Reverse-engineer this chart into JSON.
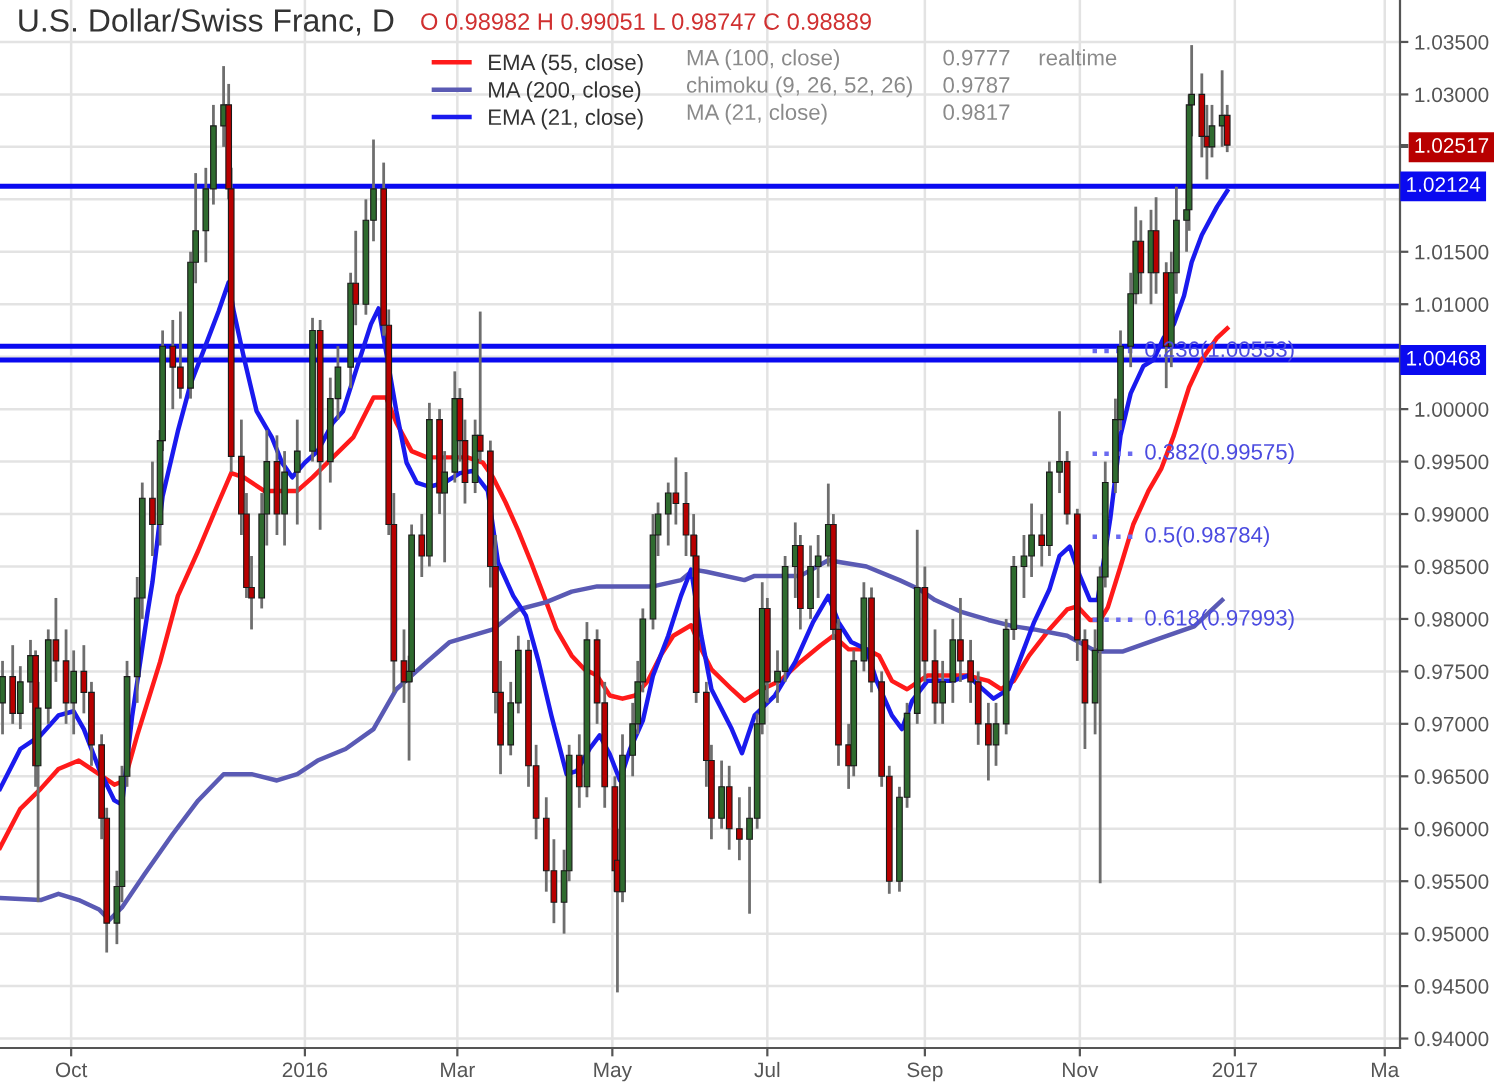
{
  "chart_data": {
    "type": "candlestick",
    "title": "U.S. Dollar/Swiss Franc, D",
    "subtitle": "O 0.98982 H 0.99051 L 0.98747 C 0.98889",
    "xlim": [
      "2015-09-03",
      "2017-03-07"
    ],
    "ylim": [
      0.9391,
      1.039
    ],
    "xticks": [
      {
        "value": "2015-10-01",
        "label": "Oct"
      },
      {
        "value": "2016-01-01",
        "label": "2016"
      },
      {
        "value": "2016-03-01",
        "label": "Mar"
      },
      {
        "value": "2016-05-01",
        "label": "May"
      },
      {
        "value": "2016-07-01",
        "label": "Jul"
      },
      {
        "value": "2016-09-01",
        "label": "Sep"
      },
      {
        "value": "2016-11-01",
        "label": "Nov"
      },
      {
        "value": "2017-01-01",
        "label": "2017"
      },
      {
        "value": "2017-03-01",
        "label": "Ma"
      }
    ],
    "yticks": [
      {
        "value": 0.94,
        "label": "0.94000"
      },
      {
        "value": 0.945,
        "label": "0.94500"
      },
      {
        "value": 0.95,
        "label": "0.95000"
      },
      {
        "value": 0.955,
        "label": "0.95500"
      },
      {
        "value": 0.96,
        "label": "0.96000"
      },
      {
        "value": 0.965,
        "label": "0.96500"
      },
      {
        "value": 0.97,
        "label": "0.97000"
      },
      {
        "value": 0.975,
        "label": "0.97500"
      },
      {
        "value": 0.98,
        "label": "0.98000"
      },
      {
        "value": 0.985,
        "label": "0.98500"
      },
      {
        "value": 0.99,
        "label": "0.99000"
      },
      {
        "value": 0.995,
        "label": "0.99500"
      },
      {
        "value": 1.0,
        "label": "1.00000"
      },
      {
        "value": 1.005,
        "label": null
      },
      {
        "value": 1.01,
        "label": "1.01000"
      },
      {
        "value": 1.015,
        "label": "1.01500"
      },
      {
        "value": 1.02,
        "label": null
      },
      {
        "value": 1.025,
        "label": null
      },
      {
        "value": 1.02517,
        "label": "1.02517"
      },
      {
        "value": 1.03,
        "label": "1.03000"
      },
      {
        "value": 1.035,
        "label": "1.03500"
      }
    ],
    "grid": true,
    "legend": "top",
    "series": [
      {
        "x": [
          "2015-09-04",
          "2015-09-08",
          "2015-09-11",
          "2015-09-15",
          "2015-09-17",
          "2015-09-18",
          "2015-09-22",
          "2015-09-25",
          "2015-09-29",
          "2015-10-02",
          "2015-10-06",
          "2015-10-09",
          "2015-10-13",
          "2015-10-15",
          "2015-10-19",
          "2015-10-21",
          "2015-10-23",
          "2015-10-27",
          "2015-10-29",
          "2015-11-02",
          "2015-11-05",
          "2015-11-06",
          "2015-11-10",
          "2015-11-13",
          "2015-11-17",
          "2015-11-19",
          "2015-11-23",
          "2015-11-26",
          "2015-11-30",
          "2015-12-02",
          "2015-12-03",
          "2015-12-07",
          "2015-12-09",
          "2015-12-11",
          "2015-12-15",
          "2015-12-17",
          "2015-12-21",
          "2015-12-24",
          "2015-12-29",
          "2016-01-04",
          "2016-01-07",
          "2016-01-11",
          "2016-01-14",
          "2016-01-19",
          "2016-01-21",
          "2016-01-25",
          "2016-01-28",
          "2016-02-01",
          "2016-02-03",
          "2016-02-05",
          "2016-02-09",
          "2016-02-11",
          "2016-02-12",
          "2016-02-16",
          "2016-02-19",
          "2016-02-23",
          "2016-02-25",
          "2016-02-29",
          "2016-03-02",
          "2016-03-04",
          "2016-03-08",
          "2016-03-10",
          "2016-03-14",
          "2016-03-16",
          "2016-03-18",
          "2016-03-22",
          "2016-03-25",
          "2016-03-29",
          "2016-04-01",
          "2016-04-05",
          "2016-04-08",
          "2016-04-12",
          "2016-04-14",
          "2016-04-18",
          "2016-04-21",
          "2016-04-25",
          "2016-04-28",
          "2016-05-02",
          "2016-05-03",
          "2016-05-05",
          "2016-05-09",
          "2016-05-11",
          "2016-05-13",
          "2016-05-17",
          "2016-05-19",
          "2016-05-23",
          "2016-05-26",
          "2016-05-30",
          "2016-06-02",
          "2016-06-03",
          "2016-06-07",
          "2016-06-09",
          "2016-06-13",
          "2016-06-16",
          "2016-06-20",
          "2016-06-24",
          "2016-06-27",
          "2016-06-29",
          "2016-07-01",
          "2016-07-05",
          "2016-07-08",
          "2016-07-12",
          "2016-07-14",
          "2016-07-18",
          "2016-07-21",
          "2016-07-25",
          "2016-07-27",
          "2016-07-29",
          "2016-08-02",
          "2016-08-04",
          "2016-08-08",
          "2016-08-11",
          "2016-08-15",
          "2016-08-18",
          "2016-08-22",
          "2016-08-25",
          "2016-08-29",
          "2016-09-01",
          "2016-09-05",
          "2016-09-08",
          "2016-09-12",
          "2016-09-15",
          "2016-09-19",
          "2016-09-22",
          "2016-09-26",
          "2016-09-29",
          "2016-10-03",
          "2016-10-06",
          "2016-10-10",
          "2016-10-13",
          "2016-10-17",
          "2016-10-20",
          "2016-10-24",
          "2016-10-27",
          "2016-10-31",
          "2016-11-03",
          "2016-11-07",
          "2016-11-09",
          "2016-11-11",
          "2016-11-15",
          "2016-11-17",
          "2016-11-21",
          "2016-11-23",
          "2016-11-25",
          "2016-11-29",
          "2016-12-01",
          "2016-12-05",
          "2016-12-07",
          "2016-12-09",
          "2016-12-13",
          "2016-12-14",
          "2016-12-15",
          "2016-12-19",
          "2016-12-21",
          "2016-12-23",
          "2016-12-27",
          "2016-12-29"
        ],
        "ohlc": [
          [
            0.972,
            0.976,
            0.969,
            0.9745
          ],
          [
            0.9745,
            0.9775,
            0.97,
            0.971
          ],
          [
            0.971,
            0.9755,
            0.9695,
            0.974
          ],
          [
            0.974,
            0.978,
            0.972,
            0.9765
          ],
          [
            0.9765,
            0.977,
            0.964,
            0.966
          ],
          [
            0.966,
            0.974,
            0.953,
            0.9715
          ],
          [
            0.9715,
            0.979,
            0.97,
            0.978
          ],
          [
            0.978,
            0.982,
            0.974,
            0.976
          ],
          [
            0.976,
            0.979,
            0.97,
            0.972
          ],
          [
            0.972,
            0.977,
            0.969,
            0.975
          ],
          [
            0.975,
            0.9775,
            0.971,
            0.973
          ],
          [
            0.973,
            0.974,
            0.966,
            0.968
          ],
          [
            0.968,
            0.969,
            0.959,
            0.961
          ],
          [
            0.961,
            0.962,
            0.9482,
            0.951
          ],
          [
            0.951,
            0.956,
            0.949,
            0.9545
          ],
          [
            0.9545,
            0.966,
            0.953,
            0.965
          ],
          [
            0.965,
            0.976,
            0.964,
            0.9745
          ],
          [
            0.9745,
            0.984,
            0.972,
            0.982
          ],
          [
            0.982,
            0.993,
            0.98,
            0.9915
          ],
          [
            0.9915,
            0.995,
            0.986,
            0.989
          ],
          [
            0.989,
            0.998,
            0.987,
            0.997
          ],
          [
            0.997,
            1.0075,
            0.996,
            1.006
          ],
          [
            1.006,
            1.0085,
            1.0,
            1.004
          ],
          [
            1.004,
            1.0093,
            1.001,
            1.002
          ],
          [
            1.002,
            1.015,
            1.001,
            1.014
          ],
          [
            1.014,
            1.0225,
            1.012,
            1.017
          ],
          [
            1.017,
            1.023,
            1.014,
            1.021
          ],
          [
            1.021,
            1.029,
            1.0195,
            1.027
          ],
          [
            1.027,
            1.0327,
            1.025,
            1.029
          ],
          [
            1.029,
            1.031,
            1.02,
            1.021
          ],
          [
            1.021,
            1.023,
            0.994,
            0.9955
          ],
          [
            0.9955,
            0.999,
            0.988,
            0.99
          ],
          [
            0.99,
            0.992,
            0.982,
            0.983
          ],
          [
            0.983,
            0.986,
            0.979,
            0.982
          ],
          [
            0.982,
            0.992,
            0.981,
            0.99
          ],
          [
            0.99,
            0.998,
            0.987,
            0.995
          ],
          [
            0.995,
            0.9975,
            0.988,
            0.99
          ],
          [
            0.99,
            0.996,
            0.987,
            0.994
          ],
          [
            0.994,
            0.999,
            0.989,
            0.996
          ],
          [
            0.996,
            1.0087,
            0.995,
            1.0075
          ],
          [
            1.0075,
            1.0085,
            0.9885,
            0.995
          ],
          [
            0.995,
            1.003,
            0.993,
            1.001
          ],
          [
            1.001,
            1.006,
            0.999,
            1.004
          ],
          [
            1.004,
            1.013,
            1.002,
            1.012
          ],
          [
            1.012,
            1.017,
            1.008,
            1.01
          ],
          [
            1.01,
            1.02,
            1.009,
            1.018
          ],
          [
            1.018,
            1.0257,
            1.016,
            1.021
          ],
          [
            1.021,
            1.0235,
            1.007,
            1.008
          ],
          [
            1.008,
            1.0095,
            0.988,
            0.989
          ],
          [
            0.989,
            0.992,
            0.973,
            0.976
          ],
          [
            0.976,
            0.979,
            0.972,
            0.974
          ],
          [
            0.974,
            0.9765,
            0.9665,
            0.975
          ],
          [
            0.975,
            0.989,
            0.974,
            0.988
          ],
          [
            0.988,
            0.99,
            0.984,
            0.986
          ],
          [
            0.986,
            1.0006,
            0.985,
            0.999
          ],
          [
            0.999,
            1.0,
            0.99,
            0.992
          ],
          [
            0.992,
            0.996,
            0.9854,
            0.994
          ],
          [
            0.994,
            1.0036,
            0.993,
            1.001
          ],
          [
            1.001,
            1.002,
            0.995,
            0.997
          ],
          [
            0.997,
            0.999,
            0.991,
            0.993
          ],
          [
            0.993,
            0.999,
            0.992,
            0.9975
          ],
          [
            0.9975,
            1.0093,
            0.995,
            0.996
          ],
          [
            0.996,
            0.997,
            0.983,
            0.985
          ],
          [
            0.985,
            0.988,
            0.971,
            0.973
          ],
          [
            0.973,
            0.976,
            0.9652,
            0.968
          ],
          [
            0.968,
            0.974,
            0.967,
            0.972
          ],
          [
            0.972,
            0.9784,
            0.971,
            0.977
          ],
          [
            0.977,
            0.978,
            0.964,
            0.966
          ],
          [
            0.966,
            0.968,
            0.959,
            0.961
          ],
          [
            0.961,
            0.963,
            0.954,
            0.956
          ],
          [
            0.956,
            0.959,
            0.951,
            0.953
          ],
          [
            0.953,
            0.958,
            0.95,
            0.956
          ],
          [
            0.956,
            0.968,
            0.955,
            0.967
          ],
          [
            0.967,
            0.969,
            0.962,
            0.964
          ],
          [
            0.964,
            0.9797,
            0.963,
            0.978
          ],
          [
            0.978,
            0.979,
            0.97,
            0.972
          ],
          [
            0.972,
            0.974,
            0.962,
            0.964
          ],
          [
            0.964,
            0.965,
            0.954,
            0.956
          ],
          [
            0.957,
            0.96,
            0.9444,
            0.954
          ],
          [
            0.954,
            0.969,
            0.953,
            0.967
          ],
          [
            0.967,
            0.972,
            0.965,
            0.97
          ],
          [
            0.97,
            0.976,
            0.969,
            0.974
          ],
          [
            0.974,
            0.981,
            0.973,
            0.98
          ],
          [
            0.98,
            0.99,
            0.979,
            0.988
          ],
          [
            0.988,
            0.9911,
            0.986,
            0.99
          ],
          [
            0.99,
            0.993,
            0.987,
            0.992
          ],
          [
            0.992,
            0.9954,
            0.989,
            0.991
          ],
          [
            0.991,
            0.994,
            0.986,
            0.988
          ],
          [
            0.988,
            0.99,
            0.984,
            0.986
          ],
          [
            0.986,
            0.988,
            0.972,
            0.973
          ],
          [
            0.973,
            0.974,
            0.964,
            0.9665
          ],
          [
            0.9665,
            0.968,
            0.959,
            0.961
          ],
          [
            0.961,
            0.9665,
            0.96,
            0.964
          ],
          [
            0.964,
            0.966,
            0.958,
            0.96
          ],
          [
            0.96,
            0.963,
            0.957,
            0.959
          ],
          [
            0.959,
            0.964,
            0.9519,
            0.961
          ],
          [
            0.961,
            0.971,
            0.96,
            0.97
          ],
          [
            0.97,
            0.9835,
            0.969,
            0.981
          ],
          [
            0.981,
            0.982,
            0.972,
            0.974
          ],
          [
            0.974,
            0.977,
            0.972,
            0.975
          ],
          [
            0.975,
            0.986,
            0.974,
            0.985
          ],
          [
            0.985,
            0.9892,
            0.982,
            0.987
          ],
          [
            0.987,
            0.988,
            0.979,
            0.981
          ],
          [
            0.981,
            0.987,
            0.98,
            0.985
          ],
          [
            0.985,
            0.988,
            0.982,
            0.986
          ],
          [
            0.986,
            0.9929,
            0.985,
            0.989
          ],
          [
            0.989,
            0.99,
            0.978,
            0.979
          ],
          [
            0.979,
            0.98,
            0.966,
            0.968
          ],
          [
            0.968,
            0.97,
            0.9638,
            0.966
          ],
          [
            0.966,
            0.977,
            0.965,
            0.976
          ],
          [
            0.976,
            0.9835,
            0.975,
            0.982
          ],
          [
            0.982,
            0.983,
            0.973,
            0.974
          ],
          [
            0.974,
            0.975,
            0.964,
            0.965
          ],
          [
            0.965,
            0.966,
            0.9538,
            0.955
          ],
          [
            0.955,
            0.964,
            0.954,
            0.963
          ],
          [
            0.963,
            0.972,
            0.962,
            0.971
          ],
          [
            0.971,
            0.9885,
            0.97,
            0.983
          ],
          [
            0.983,
            0.985,
            0.974,
            0.976
          ],
          [
            0.976,
            0.979,
            0.97,
            0.972
          ],
          [
            0.972,
            0.976,
            0.97,
            0.974
          ],
          [
            0.974,
            0.98,
            0.972,
            0.978
          ],
          [
            0.978,
            0.982,
            0.974,
            0.976
          ],
          [
            0.976,
            0.978,
            0.972,
            0.974
          ],
          [
            0.974,
            0.975,
            0.968,
            0.97
          ],
          [
            0.97,
            0.972,
            0.9646,
            0.968
          ],
          [
            0.968,
            0.972,
            0.966,
            0.97
          ],
          [
            0.97,
            0.98,
            0.969,
            0.979
          ],
          [
            0.979,
            0.986,
            0.978,
            0.985
          ],
          [
            0.985,
            0.988,
            0.982,
            0.986
          ],
          [
            0.986,
            0.991,
            0.984,
            0.988
          ],
          [
            0.988,
            0.99,
            0.985,
            0.987
          ],
          [
            0.987,
            0.995,
            0.986,
            0.994
          ],
          [
            0.994,
            0.9998,
            0.992,
            0.995
          ],
          [
            0.995,
            0.996,
            0.989,
            0.99
          ],
          [
            0.99,
            0.9905,
            0.976,
            0.978
          ],
          [
            0.978,
            0.979,
            0.9676,
            0.972
          ],
          [
            0.972,
            0.979,
            0.969,
            0.977
          ],
          [
            0.977,
            0.985,
            0.9548,
            0.984
          ],
          [
            0.984,
            0.995,
            0.983,
            0.993
          ],
          [
            0.993,
            1.001,
            0.992,
            0.999
          ],
          [
            0.999,
            1.0075,
            0.998,
            1.006
          ],
          [
            1.006,
            1.013,
            1.004,
            1.011
          ],
          [
            1.011,
            1.0193,
            1.01,
            1.016
          ],
          [
            1.016,
            1.018,
            1.011,
            1.013
          ],
          [
            1.013,
            1.019,
            1.01,
            1.017
          ],
          [
            1.017,
            1.0202,
            1.011,
            1.013
          ],
          [
            1.013,
            1.014,
            1.002,
            1.006
          ],
          [
            1.006,
            1.015,
            1.004,
            1.013
          ],
          [
            1.013,
            1.0212,
            1.011,
            1.018
          ],
          [
            1.018,
            1.021,
            1.015,
            1.019
          ],
          [
            1.019,
            1.03,
            1.017,
            1.029
          ],
          [
            1.029,
            1.0347,
            1.026,
            1.03
          ],
          [
            1.03,
            1.032,
            1.024,
            1.026
          ],
          [
            1.026,
            1.029,
            1.0219,
            1.025
          ],
          [
            1.025,
            1.029,
            1.024,
            1.027
          ],
          [
            1.027,
            1.0323,
            1.025,
            1.028
          ],
          [
            1.028,
            1.029,
            1.0245,
            1.02517
          ]
        ],
        "colors": [
          "#2f6b2f",
          "#b80000",
          "#2f6b2f",
          "#2f6b2f",
          "#b80000",
          "#2f6b2f",
          "#2f6b2f",
          "#b80000",
          "#b80000",
          "#2f6b2f",
          "#b80000",
          "#b80000",
          "#b80000",
          "#b80000",
          "#2f6b2f",
          "#2f6b2f",
          "#2f6b2f",
          "#2f6b2f",
          "#2f6b2f",
          "#b80000",
          "#2f6b2f",
          "#2f6b2f",
          "#b80000",
          "#b80000",
          "#2f6b2f",
          "#2f6b2f",
          "#2f6b2f",
          "#2f6b2f",
          "#2f6b2f",
          "#b80000",
          "#b80000",
          "#b80000",
          "#b80000",
          "#b80000",
          "#2f6b2f",
          "#2f6b2f",
          "#b80000",
          "#2f6b2f",
          "#2f6b2f",
          "#2f6b2f",
          "#b80000",
          "#2f6b2f",
          "#2f6b2f",
          "#2f6b2f",
          "#b80000",
          "#2f6b2f",
          "#2f6b2f",
          "#b80000",
          "#b80000",
          "#b80000",
          "#b80000",
          "#2f6b2f",
          "#2f6b2f",
          "#b80000",
          "#2f6b2f",
          "#b80000",
          "#2f6b2f",
          "#2f6b2f",
          "#b80000",
          "#b80000",
          "#2f6b2f",
          "#b80000",
          "#b80000",
          "#b80000",
          "#b80000",
          "#2f6b2f",
          "#2f6b2f",
          "#b80000",
          "#b80000",
          "#b80000",
          "#b80000",
          "#2f6b2f",
          "#2f6b2f",
          "#b80000",
          "#2f6b2f",
          "#b80000",
          "#b80000",
          "#b80000",
          "#b80000",
          "#2f6b2f",
          "#2f6b2f",
          "#2f6b2f",
          "#2f6b2f",
          "#2f6b2f",
          "#2f6b2f",
          "#2f6b2f",
          "#b80000",
          "#b80000",
          "#b80000",
          "#b80000",
          "#b80000",
          "#b80000",
          "#2f6b2f",
          "#b80000",
          "#b80000",
          "#2f6b2f",
          "#2f6b2f",
          "#2f6b2f",
          "#b80000",
          "#2f6b2f",
          "#2f6b2f",
          "#2f6b2f",
          "#b80000",
          "#2f6b2f",
          "#2f6b2f",
          "#2f6b2f",
          "#b80000",
          "#b80000",
          "#b80000",
          "#2f6b2f",
          "#2f6b2f",
          "#b80000",
          "#b80000",
          "#b80000",
          "#2f6b2f",
          "#2f6b2f",
          "#2f6b2f",
          "#b80000",
          "#b80000",
          "#2f6b2f",
          "#2f6b2f",
          "#b80000",
          "#b80000",
          "#b80000",
          "#b80000",
          "#2f6b2f",
          "#2f6b2f",
          "#2f6b2f",
          "#2f6b2f",
          "#2f6b2f",
          "#b80000",
          "#2f6b2f",
          "#2f6b2f",
          "#b80000",
          "#b80000",
          "#b80000",
          "#2f6b2f",
          "#2f6b2f",
          "#2f6b2f",
          "#2f6b2f",
          "#2f6b2f",
          "#2f6b2f",
          "#2f6b2f",
          "#b80000",
          "#2f6b2f",
          "#b80000",
          "#b80000",
          "#2f6b2f",
          "#2f6b2f",
          "#2f6b2f",
          "#2f6b2f",
          "#2f6b2f",
          "#b80000",
          "#b80000",
          "#2f6b2f",
          "#2f6b2f",
          "#b80000"
        ]
      },
      {
        "type": "line",
        "name": "EMA (55, close)",
        "color": "#ff1a1a",
        "x": [
          "2015-09-03",
          "2015-09-11",
          "2015-09-19",
          "2015-09-26",
          "2015-10-04",
          "2015-10-12",
          "2015-10-18",
          "2015-10-22",
          "2015-10-27",
          "2015-11-05",
          "2015-11-12",
          "2015-11-20",
          "2015-11-28",
          "2015-12-03",
          "2015-12-08",
          "2015-12-16",
          "2015-12-23",
          "2015-12-29",
          "2016-01-04",
          "2016-01-12",
          "2016-01-20",
          "2016-01-28",
          "2016-02-02",
          "2016-02-06",
          "2016-02-12",
          "2016-02-18",
          "2016-02-25",
          "2016-03-05",
          "2016-03-11",
          "2016-03-15",
          "2016-03-20",
          "2016-03-25",
          "2016-03-30",
          "2016-04-05",
          "2016-04-09",
          "2016-04-15",
          "2016-04-20",
          "2016-04-25",
          "2016-04-30",
          "2016-05-05",
          "2016-05-10",
          "2016-05-15",
          "2016-05-20",
          "2016-05-25",
          "2016-06-01",
          "2016-06-05",
          "2016-06-09",
          "2016-06-17",
          "2016-06-22",
          "2016-06-29",
          "2016-07-06",
          "2016-07-14",
          "2016-07-22",
          "2016-07-27",
          "2016-08-02",
          "2016-08-09",
          "2016-08-14",
          "2016-08-19",
          "2016-08-25",
          "2016-09-02",
          "2016-09-10",
          "2016-09-18",
          "2016-09-26",
          "2016-10-01",
          "2016-10-06",
          "2016-10-12",
          "2016-10-20",
          "2016-10-27",
          "2016-10-31",
          "2016-11-05",
          "2016-11-09",
          "2016-11-12",
          "2016-11-17",
          "2016-11-22",
          "2016-11-28",
          "2016-12-03",
          "2016-12-08",
          "2016-12-14",
          "2016-12-19",
          "2016-12-25",
          "2016-12-29"
        ],
        "values": [
          0.9582,
          0.9619,
          0.9638,
          0.9657,
          0.9665,
          0.9652,
          0.9642,
          0.9646,
          0.9689,
          0.9759,
          0.9822,
          0.9865,
          0.9911,
          0.9939,
          0.9935,
          0.9922,
          0.9922,
          0.9922,
          0.9935,
          0.9954,
          0.9973,
          1.0011,
          1.0011,
          0.9987,
          0.996,
          0.9954,
          0.9954,
          0.9954,
          0.9949,
          0.9935,
          0.9911,
          0.9884,
          0.9854,
          0.9816,
          0.979,
          0.9765,
          0.9752,
          0.9746,
          0.9727,
          0.9724,
          0.9727,
          0.9741,
          0.9765,
          0.9784,
          0.9794,
          0.9771,
          0.9752,
          0.9733,
          0.9722,
          0.9733,
          0.9741,
          0.9759,
          0.9775,
          0.9784,
          0.9771,
          0.9771,
          0.9765,
          0.9741,
          0.9733,
          0.9746,
          0.9746,
          0.9746,
          0.9741,
          0.9733,
          0.9741,
          0.9765,
          0.979,
          0.9809,
          0.9812,
          0.9799,
          0.9799,
          0.9811,
          0.985,
          0.989,
          0.9922,
          0.9943,
          0.9975,
          1.0021,
          1.0047,
          1.0068,
          1.0077
        ]
      },
      {
        "type": "line",
        "name": "MA (200, close)",
        "color": "#5a5ab4",
        "x": [
          "2015-09-03",
          "2015-09-19",
          "2015-09-26",
          "2015-10-04",
          "2015-10-12",
          "2015-10-16",
          "2015-10-21",
          "2015-10-30",
          "2015-11-10",
          "2015-11-20",
          "2015-11-30",
          "2015-12-11",
          "2015-12-21",
          "2015-12-29",
          "2016-01-06",
          "2016-01-17",
          "2016-01-28",
          "2016-02-06",
          "2016-02-18",
          "2016-02-27",
          "2016-03-15",
          "2016-03-25",
          "2016-04-05",
          "2016-04-15",
          "2016-04-25",
          "2016-05-05",
          "2016-05-17",
          "2016-05-28",
          "2016-06-02",
          "2016-06-07",
          "2016-06-22",
          "2016-06-26",
          "2016-07-14",
          "2016-07-25",
          "2016-08-09",
          "2016-08-22",
          "2016-08-30",
          "2016-09-05",
          "2016-09-15",
          "2016-09-26",
          "2016-10-06",
          "2016-10-14",
          "2016-10-27",
          "2016-11-06",
          "2016-11-09",
          "2016-11-18",
          "2016-12-03",
          "2016-12-16",
          "2016-12-27"
        ],
        "values": [
          0.9534,
          0.9532,
          0.9538,
          0.9532,
          0.9523,
          0.9513,
          0.9525,
          0.9557,
          0.9595,
          0.9627,
          0.9652,
          0.9652,
          0.9646,
          0.9652,
          0.9665,
          0.9676,
          0.9695,
          0.9733,
          0.9759,
          0.9778,
          0.979,
          0.9809,
          0.9816,
          0.9826,
          0.9831,
          0.9831,
          0.9831,
          0.9837,
          0.9847,
          0.9845,
          0.9837,
          0.9841,
          0.9841,
          0.9856,
          0.985,
          0.9837,
          0.9828,
          0.9818,
          0.9807,
          0.9799,
          0.9793,
          0.979,
          0.9784,
          0.9771,
          0.9769,
          0.9769,
          0.9782,
          0.9793,
          0.9818
        ]
      },
      {
        "type": "line",
        "name": "EMA (21, close)",
        "color": "#1a1aee",
        "x": [
          "2015-09-03",
          "2015-09-11",
          "2015-09-19",
          "2015-09-26",
          "2015-10-02",
          "2015-10-06",
          "2015-10-12",
          "2015-10-18",
          "2015-10-21",
          "2015-10-25",
          "2015-10-31",
          "2015-11-02",
          "2015-11-06",
          "2015-11-12",
          "2015-11-17",
          "2015-11-22",
          "2015-11-28",
          "2015-12-02",
          "2015-12-04",
          "2015-12-08",
          "2015-12-13",
          "2015-12-19",
          "2015-12-23",
          "2015-12-27",
          "2016-01-01",
          "2016-01-06",
          "2016-01-12",
          "2016-01-16",
          "2016-01-21",
          "2016-01-27",
          "2016-01-30",
          "2016-02-06",
          "2016-02-10",
          "2016-02-14",
          "2016-02-19",
          "2016-02-25",
          "2016-03-02",
          "2016-03-07",
          "2016-03-13",
          "2016-03-17",
          "2016-03-23",
          "2016-03-28",
          "2016-04-02",
          "2016-04-07",
          "2016-04-13",
          "2016-04-17",
          "2016-04-22",
          "2016-04-26",
          "2016-04-30",
          "2016-05-04",
          "2016-05-08",
          "2016-05-13",
          "2016-05-17",
          "2016-05-23",
          "2016-05-28",
          "2016-06-01",
          "2016-06-05",
          "2016-06-09",
          "2016-06-17",
          "2016-06-21",
          "2016-06-26",
          "2016-07-04",
          "2016-07-12",
          "2016-07-19",
          "2016-07-25",
          "2016-07-29",
          "2016-08-03",
          "2016-08-09",
          "2016-08-13",
          "2016-08-19",
          "2016-08-23",
          "2016-08-27",
          "2016-09-02",
          "2016-09-12",
          "2016-09-18",
          "2016-09-22",
          "2016-09-28",
          "2016-10-04",
          "2016-10-09",
          "2016-10-14",
          "2016-10-20",
          "2016-10-24",
          "2016-10-28",
          "2016-11-01",
          "2016-11-05",
          "2016-11-08",
          "2016-11-13",
          "2016-11-17",
          "2016-11-21",
          "2016-11-26",
          "2016-11-30",
          "2016-12-04",
          "2016-12-08",
          "2016-12-12",
          "2016-12-15",
          "2016-12-19",
          "2016-12-25",
          "2016-12-29"
        ],
        "values": [
          0.9638,
          0.9676,
          0.9689,
          0.9708,
          0.9712,
          0.9695,
          0.9657,
          0.9627,
          0.9623,
          0.9707,
          0.9805,
          0.9835,
          0.9917,
          0.9979,
          1.0024,
          1.0055,
          1.0093,
          1.0121,
          1.0093,
          1.0049,
          0.9998,
          0.9973,
          0.9949,
          0.9935,
          0.9949,
          0.996,
          0.9987,
          0.9998,
          1.0036,
          1.0081,
          1.0096,
          0.9998,
          0.9949,
          0.993,
          0.9926,
          0.993,
          0.9939,
          0.9941,
          0.9922,
          0.9854,
          0.9822,
          0.9803,
          0.9759,
          0.9708,
          0.9652,
          0.9655,
          0.9676,
          0.9689,
          0.9671,
          0.9646,
          0.9676,
          0.9703,
          0.9746,
          0.9784,
          0.9822,
          0.9847,
          0.9784,
          0.9733,
          0.9695,
          0.9672,
          0.9708,
          0.9727,
          0.9759,
          0.9797,
          0.9822,
          0.9797,
          0.9778,
          0.9771,
          0.9741,
          0.9708,
          0.9695,
          0.9722,
          0.9741,
          0.9741,
          0.9746,
          0.9737,
          0.9724,
          0.9733,
          0.9765,
          0.9797,
          0.9828,
          0.986,
          0.9869,
          0.9841,
          0.9818,
          0.9818,
          0.9896,
          0.9975,
          1.0015,
          1.0041,
          1.0047,
          1.0068,
          1.0081,
          1.0108,
          1.014,
          1.0166,
          1.0193,
          1.0208
        ]
      },
      {
        "type": "line",
        "color": "#6a6af0",
        "line_style": "dotted",
        "x": [
          "2016-11-06",
          "2016-11-22"
        ],
        "values": [
          1.00553,
          1.00553
        ]
      },
      {
        "type": "line",
        "color": "#6a6af0",
        "line_style": "dotted",
        "x": [
          "2016-11-06",
          "2016-11-22"
        ],
        "values": [
          0.99575,
          0.99575
        ]
      },
      {
        "type": "line",
        "color": "#6a6af0",
        "line_style": "dotted",
        "x": [
          "2016-11-06",
          "2016-11-22"
        ],
        "values": [
          0.98784,
          0.98784
        ]
      },
      {
        "type": "line",
        "color": "#6a6af0",
        "line_style": "dotted",
        "x": [
          "2016-11-06",
          "2016-11-22"
        ],
        "values": [
          0.97993,
          0.97993
        ]
      }
    ],
    "ref_lines": [
      {
        "axis": "y",
        "value": 1.02124,
        "label": "1.02124",
        "color": "#0a0af0"
      },
      {
        "axis": "y",
        "value": 1.006,
        "color": "#0a0af0"
      },
      {
        "axis": "y",
        "value": 1.00468,
        "label": "1.00468",
        "color": "#0a0af0"
      }
    ],
    "annotations": [
      {
        "text": "0.236(1.00553)",
        "x": "2016-11-22",
        "y": 1.00553
      },
      {
        "text": "0.382(0.99575)",
        "x": "2016-11-22",
        "y": 0.99575
      },
      {
        "text": "0.5(0.98784)",
        "x": "2016-11-22",
        "y": 0.98784
      },
      {
        "text": "0.618(0.97993)",
        "x": "2016-11-22",
        "y": 0.97993
      },
      "MA (100, close)",
      "chimoku (9, 26, 52, 26)",
      "MA (21, close)",
      "0.9777",
      "0.9787",
      "0.9817",
      "realtime"
    ]
  }
}
